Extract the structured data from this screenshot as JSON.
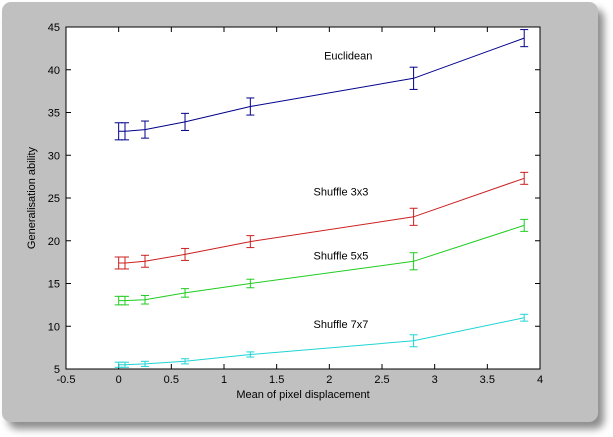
{
  "chart_data": {
    "type": "line",
    "title": "",
    "xlabel": "Mean of pixel displacement",
    "ylabel": "Generalisation ability",
    "xlim": [
      -0.5,
      4
    ],
    "ylim": [
      5,
      45
    ],
    "xticks": [
      -0.5,
      0,
      0.5,
      1,
      1.5,
      2,
      2.5,
      3,
      3.5,
      4
    ],
    "xtick_labels": [
      "-0.5",
      "0",
      "0.5",
      "1",
      "1.5",
      "2",
      "2.5",
      "3",
      "3.5",
      "4"
    ],
    "yticks": [
      5,
      10,
      15,
      20,
      25,
      30,
      35,
      40,
      45
    ],
    "ytick_labels": [
      "5",
      "10",
      "15",
      "20",
      "25",
      "30",
      "35",
      "40",
      "45"
    ],
    "grid": false,
    "legend": "none",
    "x": [
      0.0,
      0.06,
      0.25,
      0.63,
      1.25,
      2.8,
      3.85
    ],
    "series": [
      {
        "name": "Euclidean",
        "color": "#00008b",
        "values": [
          32.8,
          32.8,
          33.0,
          33.9,
          35.7,
          39.0,
          43.7
        ],
        "errors": [
          1.0,
          1.0,
          1.0,
          1.0,
          1.0,
          1.3,
          1.0
        ],
        "label_at": [
          1.95,
          41.2
        ]
      },
      {
        "name": "Shuffle 3x3",
        "color": "#cc1f1f",
        "values": [
          17.4,
          17.4,
          17.6,
          18.4,
          19.9,
          22.8,
          27.3
        ],
        "errors": [
          0.7,
          0.7,
          0.7,
          0.7,
          0.7,
          1.0,
          0.7
        ],
        "label_at": [
          1.85,
          25.3
        ]
      },
      {
        "name": "Shuffle 5x5",
        "color": "#1fcc1f",
        "values": [
          13.0,
          13.0,
          13.1,
          13.9,
          15.0,
          17.6,
          21.8
        ],
        "errors": [
          0.5,
          0.5,
          0.5,
          0.5,
          0.5,
          1.0,
          0.7
        ],
        "label_at": [
          1.85,
          17.8
        ]
      },
      {
        "name": "Shuffle 7x7",
        "color": "#1fd4d4",
        "values": [
          5.5,
          5.5,
          5.6,
          5.9,
          6.7,
          8.3,
          11.0
        ],
        "errors": [
          0.3,
          0.3,
          0.3,
          0.3,
          0.3,
          0.7,
          0.4
        ],
        "label_at": [
          1.85,
          9.8
        ]
      }
    ]
  }
}
